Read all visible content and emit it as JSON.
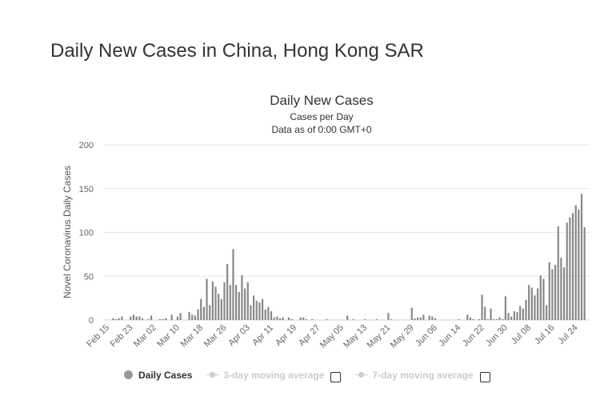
{
  "page_title": "Daily New Cases in China, Hong Kong SAR",
  "chart_data": {
    "type": "bar",
    "title": "Daily New Cases",
    "subtitle": [
      "Cases per Day",
      "Data as of 0:00 GMT+0"
    ],
    "ylabel": "Novel Coronavirus Daily Cases",
    "xlabel": "",
    "ylim": [
      0,
      200
    ],
    "y_ticks": [
      0,
      50,
      100,
      150,
      200
    ],
    "grid": true,
    "x_start": "Feb 15",
    "x_ticks": [
      "Feb 15",
      "Feb 23",
      "Mar 02",
      "Mar 10",
      "Mar 18",
      "Mar 26",
      "Apr 03",
      "Apr 11",
      "Apr 19",
      "Apr 27",
      "May 05",
      "May 13",
      "May 21",
      "May 29",
      "Jun 06",
      "Jun 14",
      "Jun 22",
      "Jun 30",
      "Jul 08",
      "Jul 16",
      "Jul 24"
    ],
    "bar_color": "#888888",
    "legend_position": "bottom",
    "series": [
      {
        "name": "Daily Cases",
        "values": [
          0,
          0,
          2,
          1,
          2,
          4,
          0,
          0,
          4,
          6,
          4,
          4,
          2,
          0,
          1,
          5,
          0,
          0,
          1,
          1,
          2,
          0,
          6,
          0,
          4,
          8,
          0,
          0,
          9,
          6,
          5,
          12,
          24,
          15,
          47,
          17,
          44,
          38,
          30,
          24,
          43,
          64,
          40,
          81,
          40,
          32,
          51,
          36,
          43,
          17,
          28,
          22,
          20,
          24,
          12,
          15,
          10,
          3,
          4,
          2,
          3,
          0,
          3,
          1,
          0,
          0,
          3,
          3,
          1,
          0,
          1,
          0,
          0,
          0,
          0,
          1,
          0,
          0,
          0,
          0,
          0,
          0,
          5,
          0,
          1,
          0,
          0,
          0,
          1,
          0,
          0,
          0,
          1,
          0,
          0,
          0,
          8,
          1,
          0,
          0,
          0,
          0,
          0,
          0,
          14,
          2,
          3,
          3,
          6,
          0,
          5,
          4,
          2,
          0,
          0,
          0,
          0,
          0,
          0,
          0,
          1,
          0,
          0,
          6,
          3,
          1,
          0,
          1,
          29,
          15,
          1,
          13,
          1,
          1,
          3,
          1,
          27,
          8,
          4,
          10,
          9,
          16,
          13,
          23,
          40,
          37,
          28,
          36,
          51,
          47,
          17,
          66,
          58,
          63,
          107,
          71,
          60,
          111,
          117,
          122,
          131,
          126,
          144,
          106
        ]
      }
    ]
  },
  "legend": {
    "daily_cases": "Daily Cases",
    "ma3": "3-day moving average",
    "ma7": "7-day moving average"
  }
}
